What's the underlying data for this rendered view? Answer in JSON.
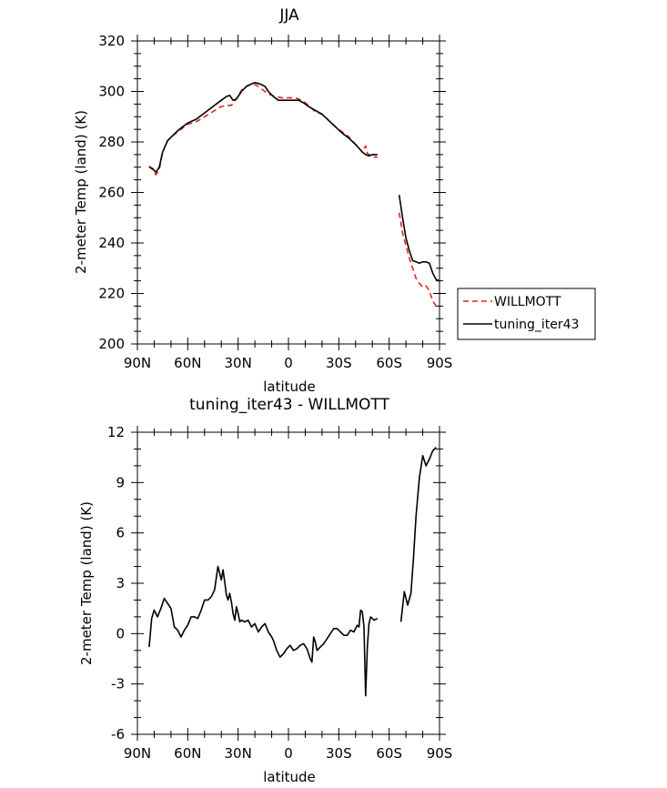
{
  "chart_data": [
    {
      "type": "line",
      "title": "JJA",
      "xlabel": "latitude",
      "ylabel": "2-meter Temp (land) (K)",
      "xlim": [
        90,
        -90
      ],
      "ylim": [
        200,
        320
      ],
      "x_ticks": [
        90,
        60,
        30,
        0,
        -30,
        -60,
        -90
      ],
      "x_tick_labels": [
        "90N",
        "60N",
        "30N",
        "0",
        "30S",
        "60S",
        "90S"
      ],
      "y_ticks": [
        200,
        220,
        240,
        260,
        280,
        300,
        320
      ],
      "y_tick_labels": [
        "200",
        "220",
        "240",
        "260",
        "280",
        "300",
        "320"
      ],
      "legend_position": "right",
      "series": [
        {
          "name": "WILLMOTT",
          "color": "#e8221b",
          "dash": "dashed",
          "segments": [
            [
              [
                83,
                270.5
              ],
              [
                81,
                269
              ],
              [
                79,
                267
              ],
              [
                77,
                269
              ],
              [
                75,
                276
              ],
              [
                72,
                280.5
              ],
              [
                69,
                282.5
              ],
              [
                65,
                284.5
              ],
              [
                60,
                287
              ],
              [
                55,
                288
              ],
              [
                50,
                290
              ],
              [
                45,
                292
              ],
              [
                40,
                294
              ],
              [
                37,
                294.5
              ],
              [
                34,
                294.5
              ],
              [
                31,
                297
              ],
              [
                28,
                300.5
              ],
              [
                25,
                302
              ],
              [
                22,
                303
              ],
              [
                19,
                302.5
              ],
              [
                16,
                301
              ],
              [
                12,
                299
              ],
              [
                8,
                298
              ],
              [
                4,
                297.5
              ],
              [
                0,
                297.5
              ],
              [
                -4,
                297.5
              ],
              [
                -8,
                296.5
              ],
              [
                -12,
                294.5
              ],
              [
                -16,
                292
              ],
              [
                -20,
                291
              ],
              [
                -24,
                288.5
              ],
              [
                -28,
                286
              ],
              [
                -32,
                284
              ],
              [
                -36,
                282
              ],
              [
                -38,
                280.5
              ],
              [
                -40,
                279
              ],
              [
                -42,
                277.5
              ],
              [
                -44,
                276
              ],
              [
                -46,
                278.5
              ],
              [
                -47,
                275.5
              ],
              [
                -49,
                274.5
              ],
              [
                -51,
                274
              ],
              [
                -53,
                274
              ]
            ],
            [
              [
                -66,
                252
              ],
              [
                -68,
                244
              ],
              [
                -70,
                239
              ],
              [
                -72,
                234
              ],
              [
                -74,
                230
              ],
              [
                -76,
                226
              ],
              [
                -78,
                224
              ],
              [
                -80,
                222.5
              ],
              [
                -82,
                223
              ],
              [
                -84,
                221
              ],
              [
                -86,
                217
              ],
              [
                -88,
                215
              ]
            ]
          ]
        },
        {
          "name": "tuning_iter43",
          "color": "#000000",
          "dash": "solid",
          "segments": [
            [
              [
                83,
                270
              ],
              [
                81,
                269.5
              ],
              [
                79,
                268
              ],
              [
                77,
                270
              ],
              [
                75,
                276
              ],
              [
                72,
                280.5
              ],
              [
                69,
                282.5
              ],
              [
                65,
                285
              ],
              [
                60,
                287.5
              ],
              [
                55,
                289
              ],
              [
                50,
                291.5
              ],
              [
                45,
                294
              ],
              [
                40,
                296.5
              ],
              [
                37,
                298
              ],
              [
                35,
                298.5
              ],
              [
                33,
                296.5
              ],
              [
                31,
                297
              ],
              [
                28,
                300
              ],
              [
                25,
                302
              ],
              [
                22,
                303
              ],
              [
                20,
                303.5
              ],
              [
                17,
                303
              ],
              [
                14,
                302
              ],
              [
                12,
                300
              ],
              [
                9,
                298
              ],
              [
                6,
                296.5
              ],
              [
                3,
                296.5
              ],
              [
                0,
                296.5
              ],
              [
                -3,
                296.5
              ],
              [
                -6,
                296.5
              ],
              [
                -9,
                295.5
              ],
              [
                -12,
                294
              ],
              [
                -16,
                292.5
              ],
              [
                -20,
                291
              ],
              [
                -24,
                288.5
              ],
              [
                -28,
                286
              ],
              [
                -32,
                283.5
              ],
              [
                -36,
                281.5
              ],
              [
                -40,
                279
              ],
              [
                -42,
                277.5
              ],
              [
                -44,
                276
              ],
              [
                -46,
                275
              ],
              [
                -48,
                274.5
              ],
              [
                -50,
                275
              ],
              [
                -53,
                275
              ]
            ],
            [
              [
                -66,
                259
              ],
              [
                -68,
                250
              ],
              [
                -70,
                242
              ],
              [
                -72,
                237
              ],
              [
                -74,
                233
              ],
              [
                -76,
                232.5
              ],
              [
                -78,
                232
              ],
              [
                -80,
                232.5
              ],
              [
                -82,
                232.5
              ],
              [
                -84,
                232
              ],
              [
                -86,
                228
              ],
              [
                -88,
                225.5
              ],
              [
                -90,
                225
              ]
            ]
          ]
        }
      ]
    },
    {
      "type": "line",
      "title": "tuning_iter43 - WILLMOTT",
      "xlabel": "latitude",
      "ylabel": "2-meter Temp (land) (K)",
      "xlim": [
        90,
        -90
      ],
      "ylim": [
        -6,
        12
      ],
      "x_ticks": [
        90,
        60,
        30,
        0,
        -30,
        -60,
        -90
      ],
      "x_tick_labels": [
        "90N",
        "60N",
        "30N",
        "0",
        "30S",
        "60S",
        "90S"
      ],
      "y_ticks": [
        -6,
        -3,
        0,
        3,
        6,
        9,
        12
      ],
      "y_tick_labels": [
        "-6",
        "-3",
        "0",
        "3",
        "6",
        "9",
        "12"
      ],
      "series": [
        {
          "color": "#000000",
          "dash": "solid",
          "segments": [
            [
              [
                83,
                -0.8
              ],
              [
                81.5,
                0.9
              ],
              [
                80,
                1.4
              ],
              [
                78,
                1.0
              ],
              [
                76,
                1.5
              ],
              [
                74,
                2.1
              ],
              [
                72,
                1.8
              ],
              [
                70,
                1.5
              ],
              [
                68,
                0.4
              ],
              [
                66,
                0.2
              ],
              [
                64,
                -0.2
              ],
              [
                62,
                0.2
              ],
              [
                60,
                0.5
              ],
              [
                58,
                1.0
              ],
              [
                56,
                1.0
              ],
              [
                54,
                0.9
              ],
              [
                52,
                1.4
              ],
              [
                50,
                2.0
              ],
              [
                48,
                2.0
              ],
              [
                46,
                2.2
              ],
              [
                44,
                2.6
              ],
              [
                42,
                4.0
              ],
              [
                41,
                3.6
              ],
              [
                40,
                3.2
              ],
              [
                39,
                3.8
              ],
              [
                38,
                3.1
              ],
              [
                37,
                2.3
              ],
              [
                36,
                2.0
              ],
              [
                35,
                2.4
              ],
              [
                34,
                1.9
              ],
              [
                33,
                1.2
              ],
              [
                32,
                0.8
              ],
              [
                31,
                1.6
              ],
              [
                30,
                1.2
              ],
              [
                29,
                0.7
              ],
              [
                28,
                0.8
              ],
              [
                26,
                0.7
              ],
              [
                24,
                0.8
              ],
              [
                22,
                0.4
              ],
              [
                20,
                0.6
              ],
              [
                18,
                0.1
              ],
              [
                16,
                0.4
              ],
              [
                14,
                0.6
              ],
              [
                12,
                0.1
              ],
              [
                10,
                -0.2
              ],
              [
                9,
                -0.4
              ],
              [
                7,
                -1.0
              ],
              [
                5,
                -1.4
              ],
              [
                3,
                -1.2
              ],
              [
                1,
                -0.9
              ],
              [
                -1,
                -0.7
              ],
              [
                -3,
                -1.0
              ],
              [
                -5,
                -0.9
              ],
              [
                -7,
                -0.7
              ],
              [
                -9,
                -0.6
              ],
              [
                -11,
                -0.9
              ],
              [
                -13,
                -1.5
              ],
              [
                -14,
                -1.7
              ],
              [
                -15,
                -0.2
              ],
              [
                -16,
                -0.5
              ],
              [
                -17,
                -1.0
              ],
              [
                -19,
                -0.8
              ],
              [
                -21,
                -0.6
              ],
              [
                -23,
                -0.3
              ],
              [
                -25,
                0.0
              ],
              [
                -27,
                0.3
              ],
              [
                -29,
                0.3
              ],
              [
                -31,
                0.1
              ],
              [
                -33,
                -0.1
              ],
              [
                -35,
                -0.1
              ],
              [
                -37,
                0.2
              ],
              [
                -39,
                0.1
              ],
              [
                -41,
                0.5
              ],
              [
                -42,
                0.4
              ],
              [
                -43,
                1.4
              ],
              [
                -44,
                1.3
              ],
              [
                -45,
                0.4
              ],
              [
                -46,
                -3.7
              ],
              [
                -47,
                -0.8
              ],
              [
                -48,
                0.6
              ],
              [
                -49,
                1.0
              ],
              [
                -51,
                0.8
              ],
              [
                -53,
                0.9
              ]
            ],
            [
              [
                -67,
                0.7
              ],
              [
                -69,
                2.5
              ],
              [
                -71,
                1.7
              ],
              [
                -73,
                2.4
              ],
              [
                -74.5,
                4.5
              ],
              [
                -76,
                7.0
              ],
              [
                -78,
                9.3
              ],
              [
                -80,
                10.6
              ],
              [
                -82,
                10.0
              ],
              [
                -84,
                10.4
              ],
              [
                -86,
                10.9
              ],
              [
                -88,
                11.1
              ]
            ]
          ]
        }
      ]
    }
  ]
}
